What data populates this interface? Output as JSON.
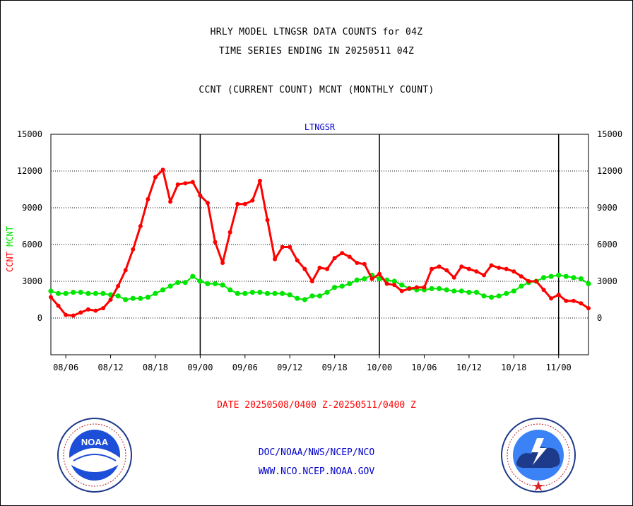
{
  "header": {
    "line1": "HRLY MODEL LTNGSR DATA COUNTS for 04Z",
    "line2": "TIME SERIES ENDING IN 20250511 04Z",
    "line3": "CCNT (CURRENT COUNT) MCNT (MONTHLY COUNT)"
  },
  "footer": {
    "date_range": "DATE 20250508/0400 Z-20250511/0400 Z",
    "org_path": "DOC/NOAA/NWS/NCEP/NCO",
    "website": "WWW.NCO.NCEP.NOAA.GOV"
  },
  "logos": {
    "left": {
      "icon": "noaa-logo",
      "text": "NOAA"
    },
    "right": {
      "icon": "nws-logo"
    }
  },
  "colors": {
    "ccnt": "#ff0000",
    "mcnt": "#00e600",
    "title_blue": "#0000cc",
    "date_red": "#ff0000"
  },
  "chart_data": {
    "type": "line",
    "title": "LTNGSR",
    "ylabel_series": [
      "CCNT",
      "MCNT"
    ],
    "ylim": [
      -3000,
      15000
    ],
    "yticks": [
      0,
      3000,
      6000,
      9000,
      12000,
      15000
    ],
    "ytick_labels": [
      "0",
      "3000",
      "6000",
      "9000",
      "12000",
      "15000"
    ],
    "xlim": [
      0,
      72
    ],
    "xticks": [
      2,
      8,
      14,
      20,
      26,
      32,
      38,
      44,
      50,
      56,
      62,
      68
    ],
    "xtick_labels": [
      "08/06",
      "08/12",
      "08/18",
      "09/00",
      "09/06",
      "09/12",
      "09/18",
      "10/00",
      "10/06",
      "10/12",
      "10/18",
      "11/00"
    ],
    "day_boundaries": [
      20,
      44,
      68
    ],
    "grid": true,
    "series": [
      {
        "name": "CCNT",
        "color": "#ff0000",
        "x": [
          0,
          1,
          2,
          3,
          4,
          5,
          6,
          7,
          8,
          9,
          10,
          11,
          12,
          13,
          14,
          15,
          16,
          17,
          18,
          19,
          20,
          21,
          22,
          23,
          24,
          25,
          26,
          27,
          28,
          29,
          30,
          31,
          32,
          33,
          34,
          35,
          36,
          37,
          38,
          39,
          40,
          41,
          42,
          43,
          44,
          45,
          46,
          47,
          48,
          49,
          50,
          51,
          52,
          53,
          54,
          55,
          56,
          57,
          58,
          59,
          60,
          61,
          62,
          63,
          64,
          65,
          66,
          67,
          68,
          69,
          70,
          71,
          72
        ],
        "values": [
          1700,
          1000,
          250,
          200,
          450,
          700,
          600,
          800,
          1500,
          2600,
          3900,
          5600,
          7500,
          9700,
          11500,
          12100,
          9500,
          10900,
          11000,
          11100,
          10000,
          9400,
          6200,
          4500,
          7000,
          9300,
          9300,
          9600,
          11200,
          8000,
          4800,
          5800,
          5800,
          4700,
          4000,
          3000,
          4100,
          4000,
          4900,
          5300,
          5000,
          4500,
          4400,
          3200,
          3600,
          2800,
          2700,
          2200,
          2400,
          2500,
          2500,
          4000,
          4200,
          3900,
          3300,
          4200,
          4000,
          3800,
          3500,
          4300,
          4100,
          4000,
          3800,
          3400,
          3000,
          3000,
          2300,
          1600,
          1900,
          1400,
          1400,
          1200,
          800
        ]
      },
      {
        "name": "MCNT",
        "color": "#00e600",
        "x": [
          0,
          1,
          2,
          3,
          4,
          5,
          6,
          7,
          8,
          9,
          10,
          11,
          12,
          13,
          14,
          15,
          16,
          17,
          18,
          19,
          20,
          21,
          22,
          23,
          24,
          25,
          26,
          27,
          28,
          29,
          30,
          31,
          32,
          33,
          34,
          35,
          36,
          37,
          38,
          39,
          40,
          41,
          42,
          43,
          44,
          45,
          46,
          47,
          48,
          49,
          50,
          51,
          52,
          53,
          54,
          55,
          56,
          57,
          58,
          59,
          60,
          61,
          62,
          63,
          64,
          65,
          66,
          67,
          68,
          69,
          70,
          71,
          72
        ],
        "values": [
          2200,
          2000,
          2000,
          2100,
          2100,
          2000,
          2000,
          2000,
          1900,
          1800,
          1500,
          1600,
          1600,
          1700,
          2000,
          2300,
          2600,
          2900,
          2900,
          3400,
          3000,
          2800,
          2800,
          2700,
          2300,
          2000,
          2000,
          2100,
          2100,
          2000,
          2000,
          2000,
          1900,
          1600,
          1500,
          1800,
          1800,
          2100,
          2500,
          2600,
          2800,
          3100,
          3200,
          3500,
          3200,
          3100,
          3000,
          2700,
          2400,
          2300,
          2300,
          2400,
          2400,
          2300,
          2200,
          2200,
          2100,
          2100,
          1800,
          1700,
          1800,
          2000,
          2200,
          2600,
          2900,
          3000,
          3300,
          3400,
          3500,
          3400,
          3300,
          3200,
          2800
        ]
      }
    ]
  }
}
